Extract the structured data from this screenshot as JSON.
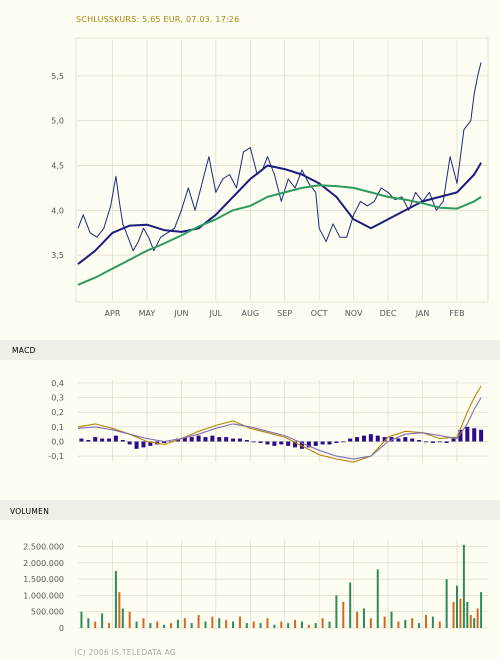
{
  "header": {
    "quote": "SCHLUSSKURS: 5,65 EUR, 07.03. 17:26"
  },
  "footer": {
    "copyright": "(C) 2006 IS.TELEDATA AG"
  },
  "colors": {
    "price": "#1a2a7a",
    "ma_short": "#1c1c7e",
    "ma_long": "#2e9a5e",
    "macd_line": "#b8860b",
    "macd_signal": "#7f6fb0",
    "macd_hist": "#2a0a8a",
    "volume_up": "#2e8b57",
    "volume_down": "#d2691e",
    "grid": "#dcdccc",
    "header_text": "#a6860e",
    "section_band": "#efefe7"
  },
  "chart_data": [
    {
      "type": "line",
      "name": "price",
      "months": [
        "APR",
        "MAY",
        "JUN",
        "JUL",
        "AUG",
        "SEP",
        "OCT",
        "NOV",
        "DEC",
        "JAN",
        "FEB"
      ],
      "yticks": [
        "5,5",
        "5,0",
        "4,5",
        "4,0",
        "3,5"
      ],
      "ytick_values": [
        5.5,
        5.0,
        4.5,
        4.0,
        3.5
      ],
      "ylim": [
        3.0,
        5.9
      ],
      "x_range": [
        0,
        11.9
      ],
      "series": [
        {
          "key": "close",
          "x": [
            0,
            0.15,
            0.35,
            0.55,
            0.75,
            0.95,
            1.1,
            1.2,
            1.3,
            1.45,
            1.6,
            1.75,
            1.9,
            2.05,
            2.2,
            2.4,
            2.6,
            2.8,
            3.0,
            3.2,
            3.4,
            3.6,
            3.8,
            4.0,
            4.2,
            4.4,
            4.6,
            4.8,
            5.0,
            5.2,
            5.35,
            5.5,
            5.7,
            5.9,
            6.1,
            6.3,
            6.5,
            6.7,
            6.9,
            7.0,
            7.2,
            7.4,
            7.6,
            7.8,
            8.0,
            8.2,
            8.4,
            8.6,
            8.8,
            9.0,
            9.2,
            9.4,
            9.6,
            9.8,
            10.0,
            10.2,
            10.4,
            10.6,
            10.8,
            11.0,
            11.2,
            11.4,
            11.5,
            11.6,
            11.7
          ],
          "y": [
            3.8,
            3.95,
            3.75,
            3.7,
            3.8,
            4.05,
            4.38,
            4.1,
            3.85,
            3.7,
            3.55,
            3.65,
            3.8,
            3.7,
            3.55,
            3.7,
            3.75,
            3.8,
            4.0,
            4.25,
            4.0,
            4.3,
            4.6,
            4.2,
            4.35,
            4.4,
            4.25,
            4.65,
            4.7,
            4.4,
            4.45,
            4.6,
            4.4,
            4.1,
            4.35,
            4.25,
            4.45,
            4.3,
            4.2,
            3.8,
            3.65,
            3.85,
            3.7,
            3.7,
            3.95,
            4.1,
            4.05,
            4.1,
            4.25,
            4.2,
            4.12,
            4.15,
            4.0,
            4.2,
            4.1,
            4.2,
            4.0,
            4.1,
            4.6,
            4.3,
            4.9,
            5.0,
            5.3,
            5.5,
            5.65
          ]
        },
        {
          "key": "ma_short",
          "x": [
            0,
            0.5,
            1.0,
            1.5,
            2.0,
            2.5,
            3.0,
            3.5,
            4.0,
            4.5,
            5.0,
            5.5,
            6.0,
            6.5,
            7.0,
            7.5,
            8.0,
            8.5,
            9.0,
            9.5,
            10.0,
            10.5,
            11.0,
            11.5,
            11.7
          ],
          "y": [
            3.4,
            3.55,
            3.75,
            3.83,
            3.84,
            3.78,
            3.76,
            3.8,
            3.95,
            4.15,
            4.35,
            4.5,
            4.46,
            4.4,
            4.3,
            4.15,
            3.9,
            3.8,
            3.9,
            4.0,
            4.1,
            4.15,
            4.2,
            4.4,
            4.53
          ]
        },
        {
          "key": "ma_long",
          "x": [
            0,
            0.5,
            1.0,
            1.5,
            2.0,
            2.5,
            3.0,
            3.5,
            4.0,
            4.5,
            5.0,
            5.5,
            6.0,
            6.5,
            7.0,
            7.5,
            8.0,
            8.5,
            9.0,
            9.5,
            10.0,
            10.5,
            11.0,
            11.5,
            11.7
          ],
          "y": [
            3.17,
            3.25,
            3.35,
            3.45,
            3.55,
            3.63,
            3.72,
            3.82,
            3.9,
            4.0,
            4.05,
            4.15,
            4.2,
            4.25,
            4.28,
            4.27,
            4.25,
            4.2,
            4.15,
            4.12,
            4.08,
            4.03,
            4.02,
            4.1,
            4.15
          ]
        }
      ]
    },
    {
      "type": "bar",
      "name": "macd",
      "title": "MACD",
      "yticks": [
        "0,4",
        "0,3",
        "0,2",
        "0,1",
        "0,0",
        "-0,1"
      ],
      "ytick_values": [
        0.4,
        0.3,
        0.2,
        0.1,
        0.0,
        -0.1
      ],
      "ylim": [
        -0.14,
        0.42
      ],
      "x_range": [
        0,
        11.9
      ],
      "lines": [
        {
          "key": "macd_line",
          "x": [
            0,
            0.5,
            1,
            1.5,
            2,
            2.5,
            3,
            3.5,
            4,
            4.5,
            5,
            5.5,
            6,
            6.5,
            7,
            7.5,
            8,
            8.5,
            9,
            9.5,
            10,
            10.5,
            11,
            11.3,
            11.5,
            11.7
          ],
          "y": [
            0.1,
            0.12,
            0.09,
            0.05,
            0.0,
            -0.02,
            0.02,
            0.07,
            0.11,
            0.14,
            0.09,
            0.06,
            0.03,
            -0.03,
            -0.09,
            -0.12,
            -0.14,
            -0.1,
            0.03,
            0.07,
            0.06,
            0.02,
            0.03,
            0.2,
            0.3,
            0.38
          ]
        },
        {
          "key": "macd_signal",
          "x": [
            0,
            0.5,
            1,
            1.5,
            2,
            2.5,
            3,
            3.5,
            4,
            4.5,
            5,
            5.5,
            6,
            6.5,
            7,
            7.5,
            8,
            8.5,
            9,
            9.5,
            10,
            10.5,
            11,
            11.3,
            11.5,
            11.7
          ],
          "y": [
            0.09,
            0.1,
            0.08,
            0.05,
            0.02,
            0.0,
            0.02,
            0.05,
            0.09,
            0.12,
            0.1,
            0.07,
            0.04,
            -0.01,
            -0.06,
            -0.1,
            -0.12,
            -0.1,
            0.0,
            0.05,
            0.06,
            0.04,
            0.02,
            0.12,
            0.22,
            0.3
          ]
        }
      ],
      "histogram_x": [
        0.1,
        0.3,
        0.5,
        0.7,
        0.9,
        1.1,
        1.3,
        1.5,
        1.7,
        1.9,
        2.1,
        2.3,
        2.5,
        2.7,
        2.9,
        3.1,
        3.3,
        3.5,
        3.7,
        3.9,
        4.1,
        4.3,
        4.5,
        4.7,
        4.9,
        5.1,
        5.3,
        5.5,
        5.7,
        5.9,
        6.1,
        6.3,
        6.5,
        6.7,
        6.9,
        7.1,
        7.3,
        7.5,
        7.7,
        7.9,
        8.1,
        8.3,
        8.5,
        8.7,
        8.9,
        9.1,
        9.3,
        9.5,
        9.7,
        9.9,
        10.1,
        10.3,
        10.5,
        10.7,
        10.9,
        11.1,
        11.3,
        11.5,
        11.7
      ],
      "histogram": [
        0.02,
        0.01,
        0.03,
        0.02,
        0.02,
        0.04,
        0.01,
        -0.02,
        -0.05,
        -0.04,
        -0.03,
        -0.02,
        -0.01,
        0.0,
        0.02,
        0.03,
        0.03,
        0.04,
        0.03,
        0.04,
        0.03,
        0.03,
        0.02,
        0.02,
        0.01,
        0.0,
        -0.01,
        -0.02,
        -0.03,
        -0.02,
        -0.03,
        -0.04,
        -0.05,
        -0.04,
        -0.03,
        -0.02,
        -0.02,
        -0.01,
        0.0,
        0.02,
        0.03,
        0.04,
        0.05,
        0.04,
        0.03,
        0.03,
        0.02,
        0.03,
        0.02,
        0.01,
        0.0,
        -0.01,
        0.0,
        -0.01,
        0.02,
        0.08,
        0.1,
        0.09,
        0.08
      ]
    },
    {
      "type": "bar",
      "name": "volume",
      "title": "VOLUMEN",
      "yticks": [
        "2.500.000",
        "2.000.000",
        "1.500.000",
        "1.000.000",
        "500.000",
        "0"
      ],
      "ytick_values": [
        2500000,
        2000000,
        1500000,
        1000000,
        500000,
        0
      ],
      "ylim": [
        0,
        2700000
      ],
      "x_range": [
        0,
        11.9
      ],
      "bars_x": [
        0.1,
        0.3,
        0.5,
        0.7,
        0.9,
        1.1,
        1.2,
        1.3,
        1.5,
        1.7,
        1.9,
        2.1,
        2.3,
        2.5,
        2.7,
        2.9,
        3.1,
        3.3,
        3.5,
        3.7,
        3.9,
        4.1,
        4.3,
        4.5,
        4.7,
        4.9,
        5.1,
        5.3,
        5.5,
        5.7,
        5.9,
        6.1,
        6.3,
        6.5,
        6.7,
        6.9,
        7.1,
        7.3,
        7.5,
        7.7,
        7.9,
        8.1,
        8.3,
        8.5,
        8.7,
        8.9,
        9.1,
        9.3,
        9.5,
        9.7,
        9.9,
        10.1,
        10.3,
        10.5,
        10.7,
        10.9,
        11.0,
        11.1,
        11.2,
        11.3,
        11.4,
        11.5,
        11.6,
        11.7
      ],
      "bars": [
        500000,
        300000,
        200000,
        450000,
        150000,
        1750000,
        1100000,
        600000,
        500000,
        200000,
        300000,
        150000,
        200000,
        100000,
        150000,
        250000,
        300000,
        150000,
        400000,
        200000,
        350000,
        300000,
        250000,
        200000,
        350000,
        150000,
        200000,
        150000,
        300000,
        100000,
        200000,
        150000,
        250000,
        200000,
        100000,
        150000,
        300000,
        200000,
        1000000,
        800000,
        1400000,
        500000,
        600000,
        300000,
        1800000,
        350000,
        500000,
        200000,
        250000,
        300000,
        150000,
        400000,
        350000,
        200000,
        1500000,
        800000,
        1300000,
        900000,
        2550000,
        800000,
        400000,
        300000,
        600000,
        1100000
      ],
      "bar_direction": [
        "up",
        "up",
        "down",
        "up",
        "down",
        "up",
        "down",
        "up",
        "down",
        "up",
        "down",
        "up",
        "down",
        "up",
        "down",
        "up",
        "down",
        "up",
        "down",
        "up",
        "down",
        "up",
        "down",
        "up",
        "down",
        "up",
        "down",
        "up",
        "down",
        "up",
        "down",
        "up",
        "down",
        "up",
        "down",
        "up",
        "down",
        "up",
        "up",
        "down",
        "up",
        "down",
        "up",
        "down",
        "up",
        "down",
        "up",
        "down",
        "up",
        "down",
        "up",
        "down",
        "up",
        "down",
        "up",
        "down",
        "up",
        "down",
        "up",
        "up",
        "down",
        "up",
        "down",
        "up"
      ]
    }
  ]
}
